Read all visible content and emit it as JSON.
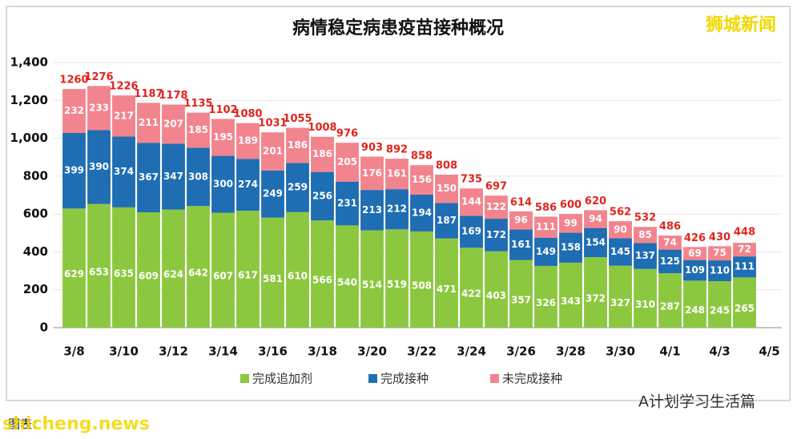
{
  "chart_data": {
    "type": "stacked-bar",
    "title": "病情稳定病患疫苗接种概况",
    "watermark": "狮城新闻",
    "footer_account": "A计划学习生活篇",
    "footer_site": "shicheng.news",
    "source": "图表：",
    "categories": [
      "3/8",
      null,
      "3/10",
      null,
      "3/12",
      null,
      "3/14",
      null,
      "3/16",
      null,
      "3/18",
      null,
      "3/20",
      null,
      "3/22",
      null,
      "3/24",
      null,
      "3/26",
      null,
      "3/28",
      null,
      "3/30",
      null,
      "4/1",
      null,
      "4/3",
      null,
      "4/5"
    ],
    "series": [
      {
        "name": "完成追加剂",
        "color": "#8cc83f",
        "values": [
          629,
          653,
          635,
          609,
          624,
          642,
          607,
          617,
          581,
          610,
          566,
          540,
          514,
          519,
          508,
          471,
          422,
          403,
          357,
          326,
          343,
          372,
          327,
          310,
          287,
          248,
          245,
          265,
          null
        ]
      },
      {
        "name": "完成接种",
        "color": "#1f6db3",
        "values": [
          399,
          390,
          374,
          367,
          347,
          308,
          300,
          274,
          249,
          259,
          256,
          231,
          213,
          212,
          194,
          187,
          169,
          172,
          161,
          149,
          158,
          154,
          145,
          137,
          125,
          109,
          110,
          111,
          null
        ]
      },
      {
        "name": "未完成接种",
        "color": "#f2848e",
        "values": [
          232,
          233,
          217,
          211,
          207,
          185,
          195,
          189,
          201,
          186,
          186,
          205,
          176,
          161,
          156,
          150,
          144,
          122,
          96,
          111,
          99,
          94,
          90,
          85,
          74,
          69,
          75,
          72,
          null
        ]
      }
    ],
    "totals": [
      1260,
      1276,
      1226,
      1187,
      1178,
      1135,
      1102,
      1080,
      1031,
      1055,
      1008,
      976,
      903,
      892,
      858,
      808,
      735,
      697,
      614,
      586,
      600,
      620,
      562,
      532,
      486,
      426,
      430,
      448,
      null
    ],
    "totals_color": "#e0241e",
    "ylim": [
      0,
      1400
    ],
    "yticks": [
      0,
      200,
      400,
      600,
      800,
      {
        "value": 1000,
        "label": "1,000"
      },
      {
        "value": 1200,
        "label": "1,200"
      },
      {
        "value": 1400,
        "label": "1,400"
      }
    ],
    "grid": true
  }
}
